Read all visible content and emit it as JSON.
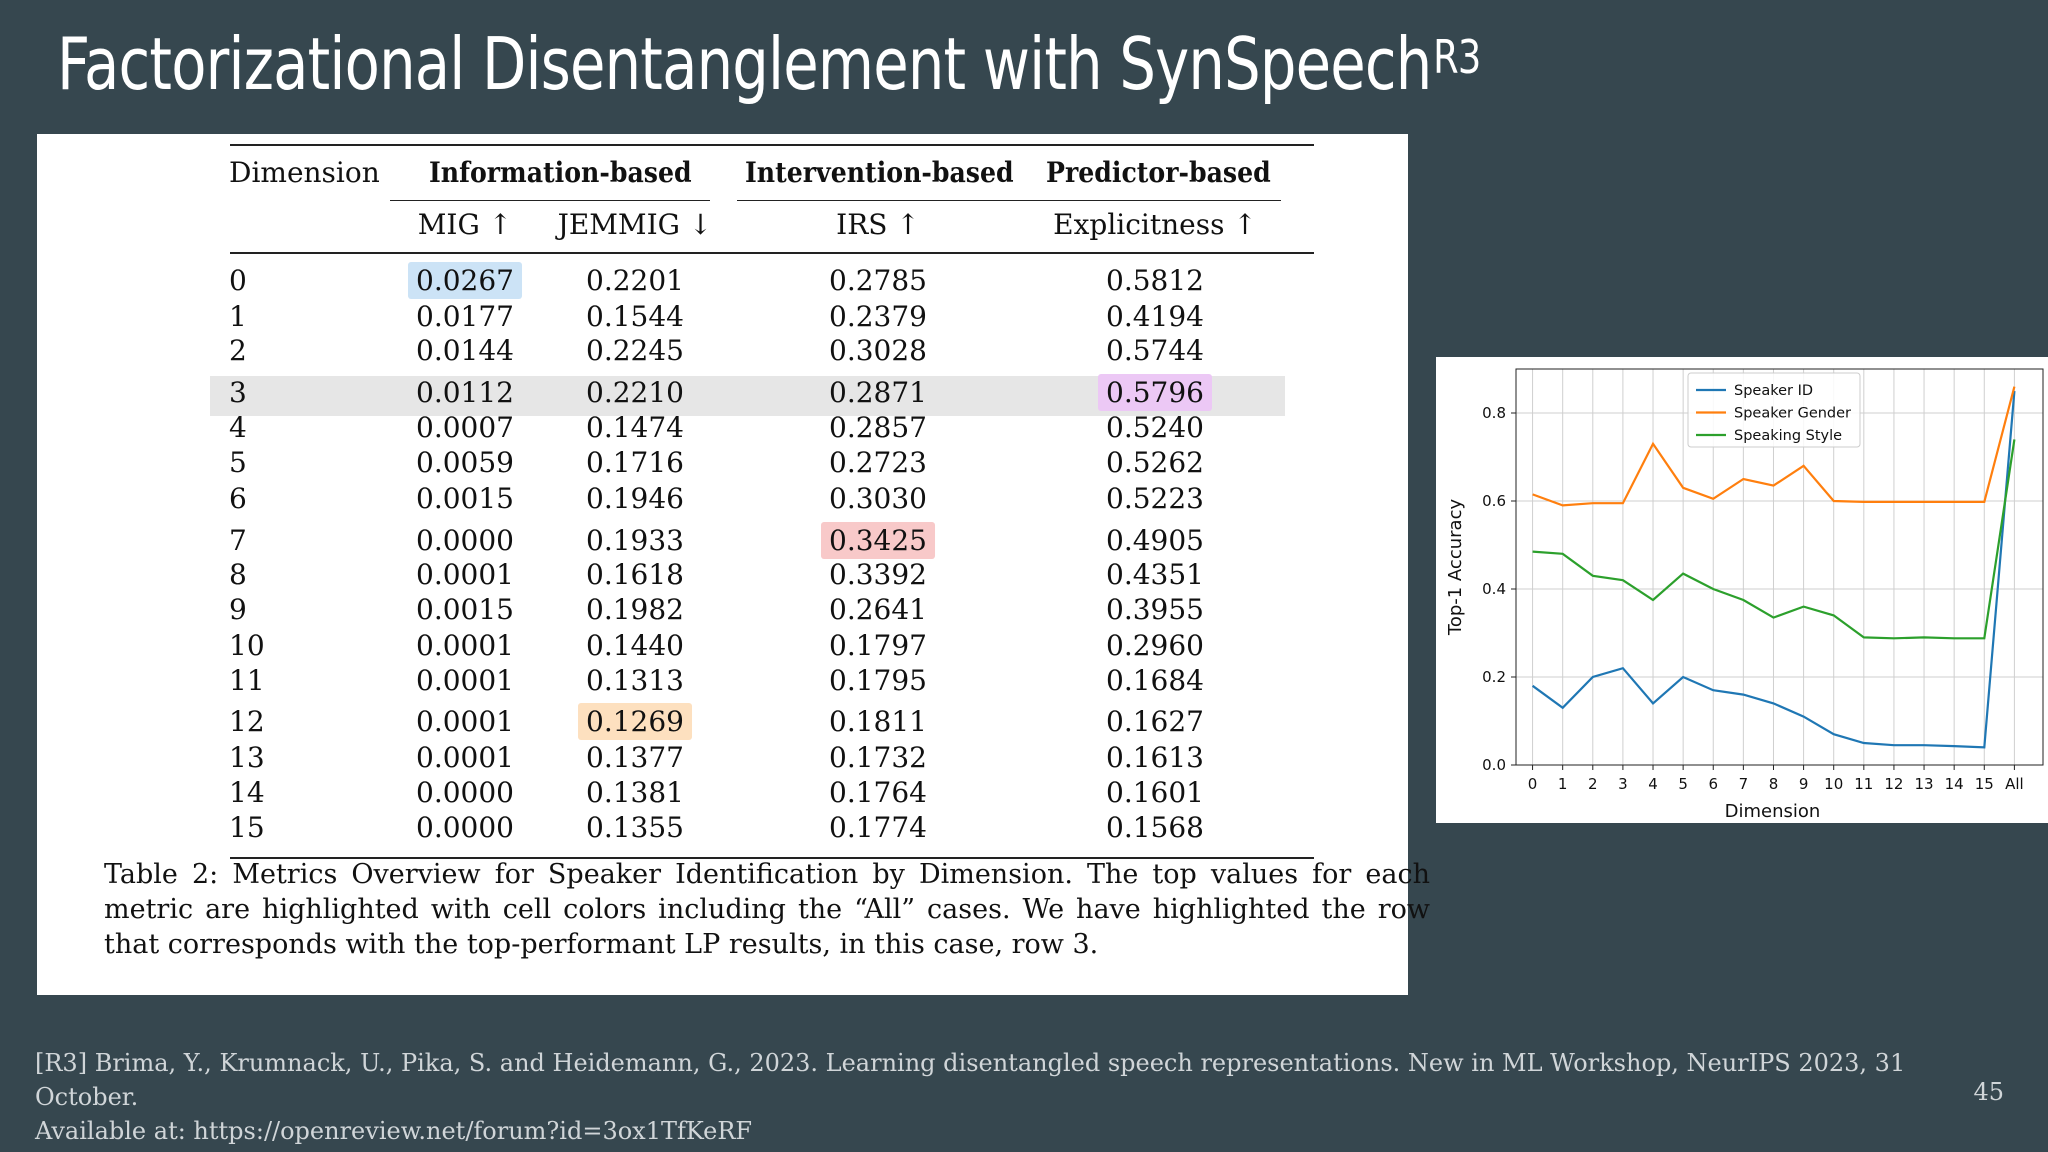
{
  "slide": {
    "title": "Factorizational Disentanglement with SynSpeech",
    "title_sup": "R3",
    "page_number": "45",
    "citation_line1": "[R3] Brima, Y., Krumnack, U., Pika, S. and Heidemann, G., 2023. Learning disentangled speech representations. New in ML Workshop, NeurIPS 2023, 31 October.",
    "citation_line2": "Available at: https://openreview.net/forum?id=3ox1TfKeRF"
  },
  "table": {
    "header_dimension": "Dimension",
    "group_info": "Information-based",
    "group_intervention": "Intervention-based",
    "group_predictor": "Predictor-based",
    "col_mig": "MIG ↑",
    "col_jemmig": "JEMMIG ↓",
    "col_irs": "IRS ↑",
    "col_explicitness": "Explicitness ↑",
    "rows": [
      {
        "dim": "0",
        "mig": "0.0267",
        "jemmig": "0.2201",
        "irs": "0.2785",
        "expl": "0.5812"
      },
      {
        "dim": "1",
        "mig": "0.0177",
        "jemmig": "0.1544",
        "irs": "0.2379",
        "expl": "0.4194"
      },
      {
        "dim": "2",
        "mig": "0.0144",
        "jemmig": "0.2245",
        "irs": "0.3028",
        "expl": "0.5744"
      },
      {
        "dim": "3",
        "mig": "0.0112",
        "jemmig": "0.2210",
        "irs": "0.2871",
        "expl": "0.5796"
      },
      {
        "dim": "4",
        "mig": "0.0007",
        "jemmig": "0.1474",
        "irs": "0.2857",
        "expl": "0.5240"
      },
      {
        "dim": "5",
        "mig": "0.0059",
        "jemmig": "0.1716",
        "irs": "0.2723",
        "expl": "0.5262"
      },
      {
        "dim": "6",
        "mig": "0.0015",
        "jemmig": "0.1946",
        "irs": "0.3030",
        "expl": "0.5223"
      },
      {
        "dim": "7",
        "mig": "0.0000",
        "jemmig": "0.1933",
        "irs": "0.3425",
        "expl": "0.4905"
      },
      {
        "dim": "8",
        "mig": "0.0001",
        "jemmig": "0.1618",
        "irs": "0.3392",
        "expl": "0.4351"
      },
      {
        "dim": "9",
        "mig": "0.0015",
        "jemmig": "0.1982",
        "irs": "0.2641",
        "expl": "0.3955"
      },
      {
        "dim": "10",
        "mig": "0.0001",
        "jemmig": "0.1440",
        "irs": "0.1797",
        "expl": "0.2960"
      },
      {
        "dim": "11",
        "mig": "0.0001",
        "jemmig": "0.1313",
        "irs": "0.1795",
        "expl": "0.1684"
      },
      {
        "dim": "12",
        "mig": "0.0001",
        "jemmig": "0.1269",
        "irs": "0.1811",
        "expl": "0.1627"
      },
      {
        "dim": "13",
        "mig": "0.0001",
        "jemmig": "0.1377",
        "irs": "0.1732",
        "expl": "0.1613"
      },
      {
        "dim": "14",
        "mig": "0.0000",
        "jemmig": "0.1381",
        "irs": "0.1764",
        "expl": "0.1601"
      },
      {
        "dim": "15",
        "mig": "0.0000",
        "jemmig": "0.1355",
        "irs": "0.1774",
        "expl": "0.1568"
      }
    ],
    "highlight_colors": {
      "mig": "#cce3f6",
      "jemmig": "#fde0bf",
      "irs": "#f8c9c9",
      "expl": "#ecc8f5",
      "row": "#e6e6e6"
    },
    "caption": "Table 2: Metrics Overview for Speaker Identification by Dimension. The top values for each metric are highlighted with cell colors including the “All” cases. We have highlighted the row that corresponds with the top-performant LP results, in this case, row 3."
  },
  "chart_data": {
    "type": "line",
    "xlabel": "Dimension",
    "ylabel": "Top-1 Accuracy",
    "categories": [
      "0",
      "1",
      "2",
      "3",
      "4",
      "5",
      "6",
      "7",
      "8",
      "9",
      "10",
      "11",
      "12",
      "13",
      "14",
      "15",
      "All"
    ],
    "ylim": [
      0.0,
      0.9
    ],
    "yticks": [
      "0.0",
      "0.2",
      "0.4",
      "0.6",
      "0.8"
    ],
    "grid": true,
    "legend_position": "top-center",
    "series": [
      {
        "name": "Speaker ID",
        "color": "#1f77b4",
        "values": [
          0.18,
          0.13,
          0.2,
          0.22,
          0.14,
          0.2,
          0.17,
          0.16,
          0.14,
          0.11,
          0.07,
          0.05,
          0.045,
          0.045,
          0.043,
          0.04,
          0.85
        ]
      },
      {
        "name": "Speaker Gender",
        "color": "#ff7f0e",
        "values": [
          0.615,
          0.59,
          0.595,
          0.595,
          0.73,
          0.63,
          0.605,
          0.65,
          0.635,
          0.68,
          0.6,
          0.598,
          0.598,
          0.598,
          0.598,
          0.598,
          0.86
        ]
      },
      {
        "name": "Speaking Style",
        "color": "#2ca02c",
        "values": [
          0.485,
          0.48,
          0.43,
          0.42,
          0.375,
          0.435,
          0.4,
          0.375,
          0.335,
          0.36,
          0.34,
          0.29,
          0.288,
          0.29,
          0.288,
          0.288,
          0.74
        ]
      }
    ]
  }
}
